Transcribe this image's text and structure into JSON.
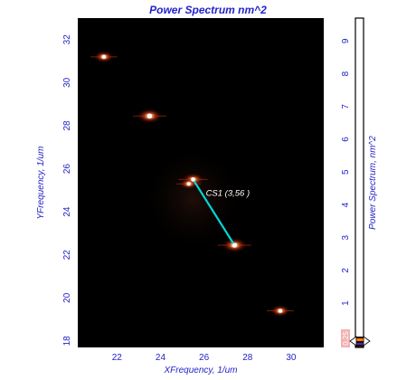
{
  "chart_data": {
    "type": "heatmap",
    "title": "Power Spectrum nm^2",
    "xlabel": "XFrequency, 1/um",
    "ylabel": "YFrequency, 1/um",
    "xlim": [
      20.2,
      31.5
    ],
    "ylim": [
      17.7,
      33.0
    ],
    "xticks": [
      22,
      24,
      26,
      28,
      30
    ],
    "yticks": [
      18,
      20,
      22,
      24,
      26,
      28,
      30,
      32
    ],
    "background_color": "#000000",
    "peaks": [
      {
        "x": 21.4,
        "y": 31.2,
        "intensity": 0.6
      },
      {
        "x": 23.5,
        "y": 28.45,
        "intensity": 0.9
      },
      {
        "x": 25.5,
        "y": 25.5,
        "intensity": 0.7
      },
      {
        "x": 25.3,
        "y": 25.3,
        "intensity": 0.5
      },
      {
        "x": 27.4,
        "y": 22.45,
        "intensity": 0.9
      },
      {
        "x": 29.5,
        "y": 19.4,
        "intensity": 0.6
      }
    ],
    "cross_section": {
      "label": "CS1 (3,56 )",
      "x1": 25.5,
      "y1": 25.5,
      "x2": 27.4,
      "y2": 22.45,
      "color": "#00d8d8"
    },
    "colorbar": {
      "label": "Power Spectrum, nm^2",
      "ticks": [
        1,
        2,
        3,
        4,
        5,
        6,
        7,
        8,
        9
      ],
      "lim": [
        -0.35,
        9.7
      ],
      "marker_value": "0.25",
      "marker_color": "#f3b2b2"
    }
  }
}
